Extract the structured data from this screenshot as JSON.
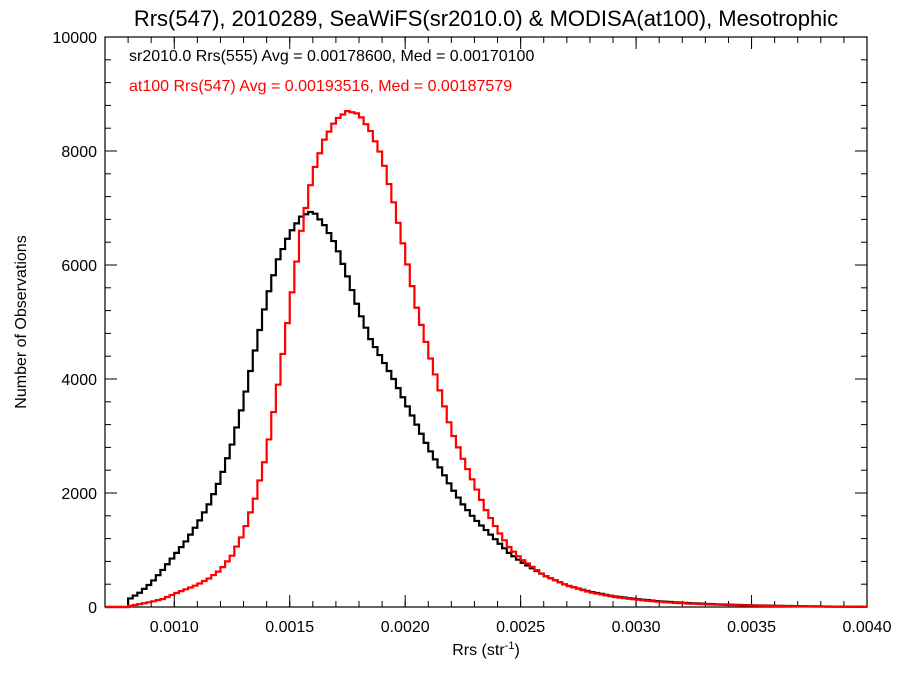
{
  "chart_data": {
    "type": "line",
    "title": "Rrs(547), 2010289, SeaWiFS(sr2010.0) & MODISA(at100), Mesotrophic",
    "xlabel": "Rrs (str",
    "xlabel_sup": "-1",
    "xlabel_end": ")",
    "ylabel": "Number of Observations",
    "xlim": [
      0.0007,
      0.004
    ],
    "ylim": [
      0,
      10000
    ],
    "xticks": [
      0.001,
      0.0015,
      0.002,
      0.0025,
      0.003,
      0.0035,
      0.004
    ],
    "xtick_labels": [
      "0.0010",
      "0.0015",
      "0.0020",
      "0.0025",
      "0.0030",
      "0.0035",
      "0.0040"
    ],
    "yticks": [
      0,
      2000,
      4000,
      6000,
      8000,
      10000
    ],
    "ytick_labels": [
      "0",
      "2000",
      "4000",
      "6000",
      "8000",
      "10000"
    ],
    "grid": false,
    "annotations": [
      {
        "text": "sr2010.0 Rrs(555) Avg = 0.00178600, Med = 0.00170100",
        "color": "#000000"
      },
      {
        "text": "at100 Rrs(547) Avg = 0.00193516, Med = 0.00187579",
        "color": "#ff0000"
      }
    ],
    "series": [
      {
        "color": "#000000",
        "x": [
          0.0007,
          0.00079,
          0.00081,
          0.00085,
          0.0009,
          0.00095,
          0.001,
          0.00105,
          0.0011,
          0.00115,
          0.0012,
          0.00125,
          0.0013,
          0.00135,
          0.0014,
          0.00145,
          0.0015,
          0.00155,
          0.0016,
          0.00165,
          0.0017,
          0.00175,
          0.0018,
          0.00185,
          0.0019,
          0.00195,
          0.002,
          0.00205,
          0.0021,
          0.00215,
          0.0022,
          0.00225,
          0.0023,
          0.00235,
          0.0024,
          0.00245,
          0.0025,
          0.0026,
          0.0027,
          0.0028,
          0.0029,
          0.003,
          0.0031,
          0.0032,
          0.0033,
          0.0034,
          0.0035,
          0.0036,
          0.0037,
          0.0038,
          0.0039,
          0.004
        ],
        "y": [
          0,
          0,
          150,
          250,
          420,
          650,
          900,
          1150,
          1450,
          1800,
          2250,
          2850,
          3600,
          4500,
          5400,
          6100,
          6550,
          6850,
          6950,
          6700,
          6350,
          5800,
          5200,
          4700,
          4350,
          4000,
          3600,
          3200,
          2800,
          2450,
          2100,
          1800,
          1550,
          1350,
          1150,
          950,
          800,
          560,
          380,
          270,
          190,
          140,
          100,
          75,
          55,
          40,
          30,
          22,
          15,
          10,
          6,
          3
        ]
      },
      {
        "color": "#ff0000",
        "x": [
          0.0007,
          0.00079,
          0.00081,
          0.00085,
          0.0009,
          0.00095,
          0.001,
          0.00105,
          0.0011,
          0.00115,
          0.0012,
          0.00125,
          0.0013,
          0.00135,
          0.0014,
          0.00145,
          0.0015,
          0.00155,
          0.0016,
          0.00165,
          0.0017,
          0.00175,
          0.0018,
          0.00185,
          0.0019,
          0.00195,
          0.002,
          0.00205,
          0.0021,
          0.00215,
          0.0022,
          0.00225,
          0.0023,
          0.00235,
          0.0024,
          0.00245,
          0.0025,
          0.0026,
          0.0027,
          0.0028,
          0.0029,
          0.003,
          0.0031,
          0.0032,
          0.0033,
          0.0034,
          0.0035,
          0.0036,
          0.0037,
          0.0038,
          0.0039,
          0.004
        ],
        "y": [
          0,
          0,
          20,
          50,
          90,
          140,
          230,
          310,
          390,
          500,
          650,
          900,
          1300,
          1900,
          2700,
          3900,
          5250,
          6600,
          7600,
          8200,
          8550,
          8700,
          8650,
          8350,
          7900,
          7100,
          6200,
          5250,
          4500,
          3800,
          3100,
          2600,
          2150,
          1700,
          1350,
          1050,
          850,
          560,
          380,
          260,
          180,
          130,
          90,
          65,
          48,
          35,
          25,
          18,
          12,
          8,
          5,
          2
        ]
      }
    ]
  }
}
